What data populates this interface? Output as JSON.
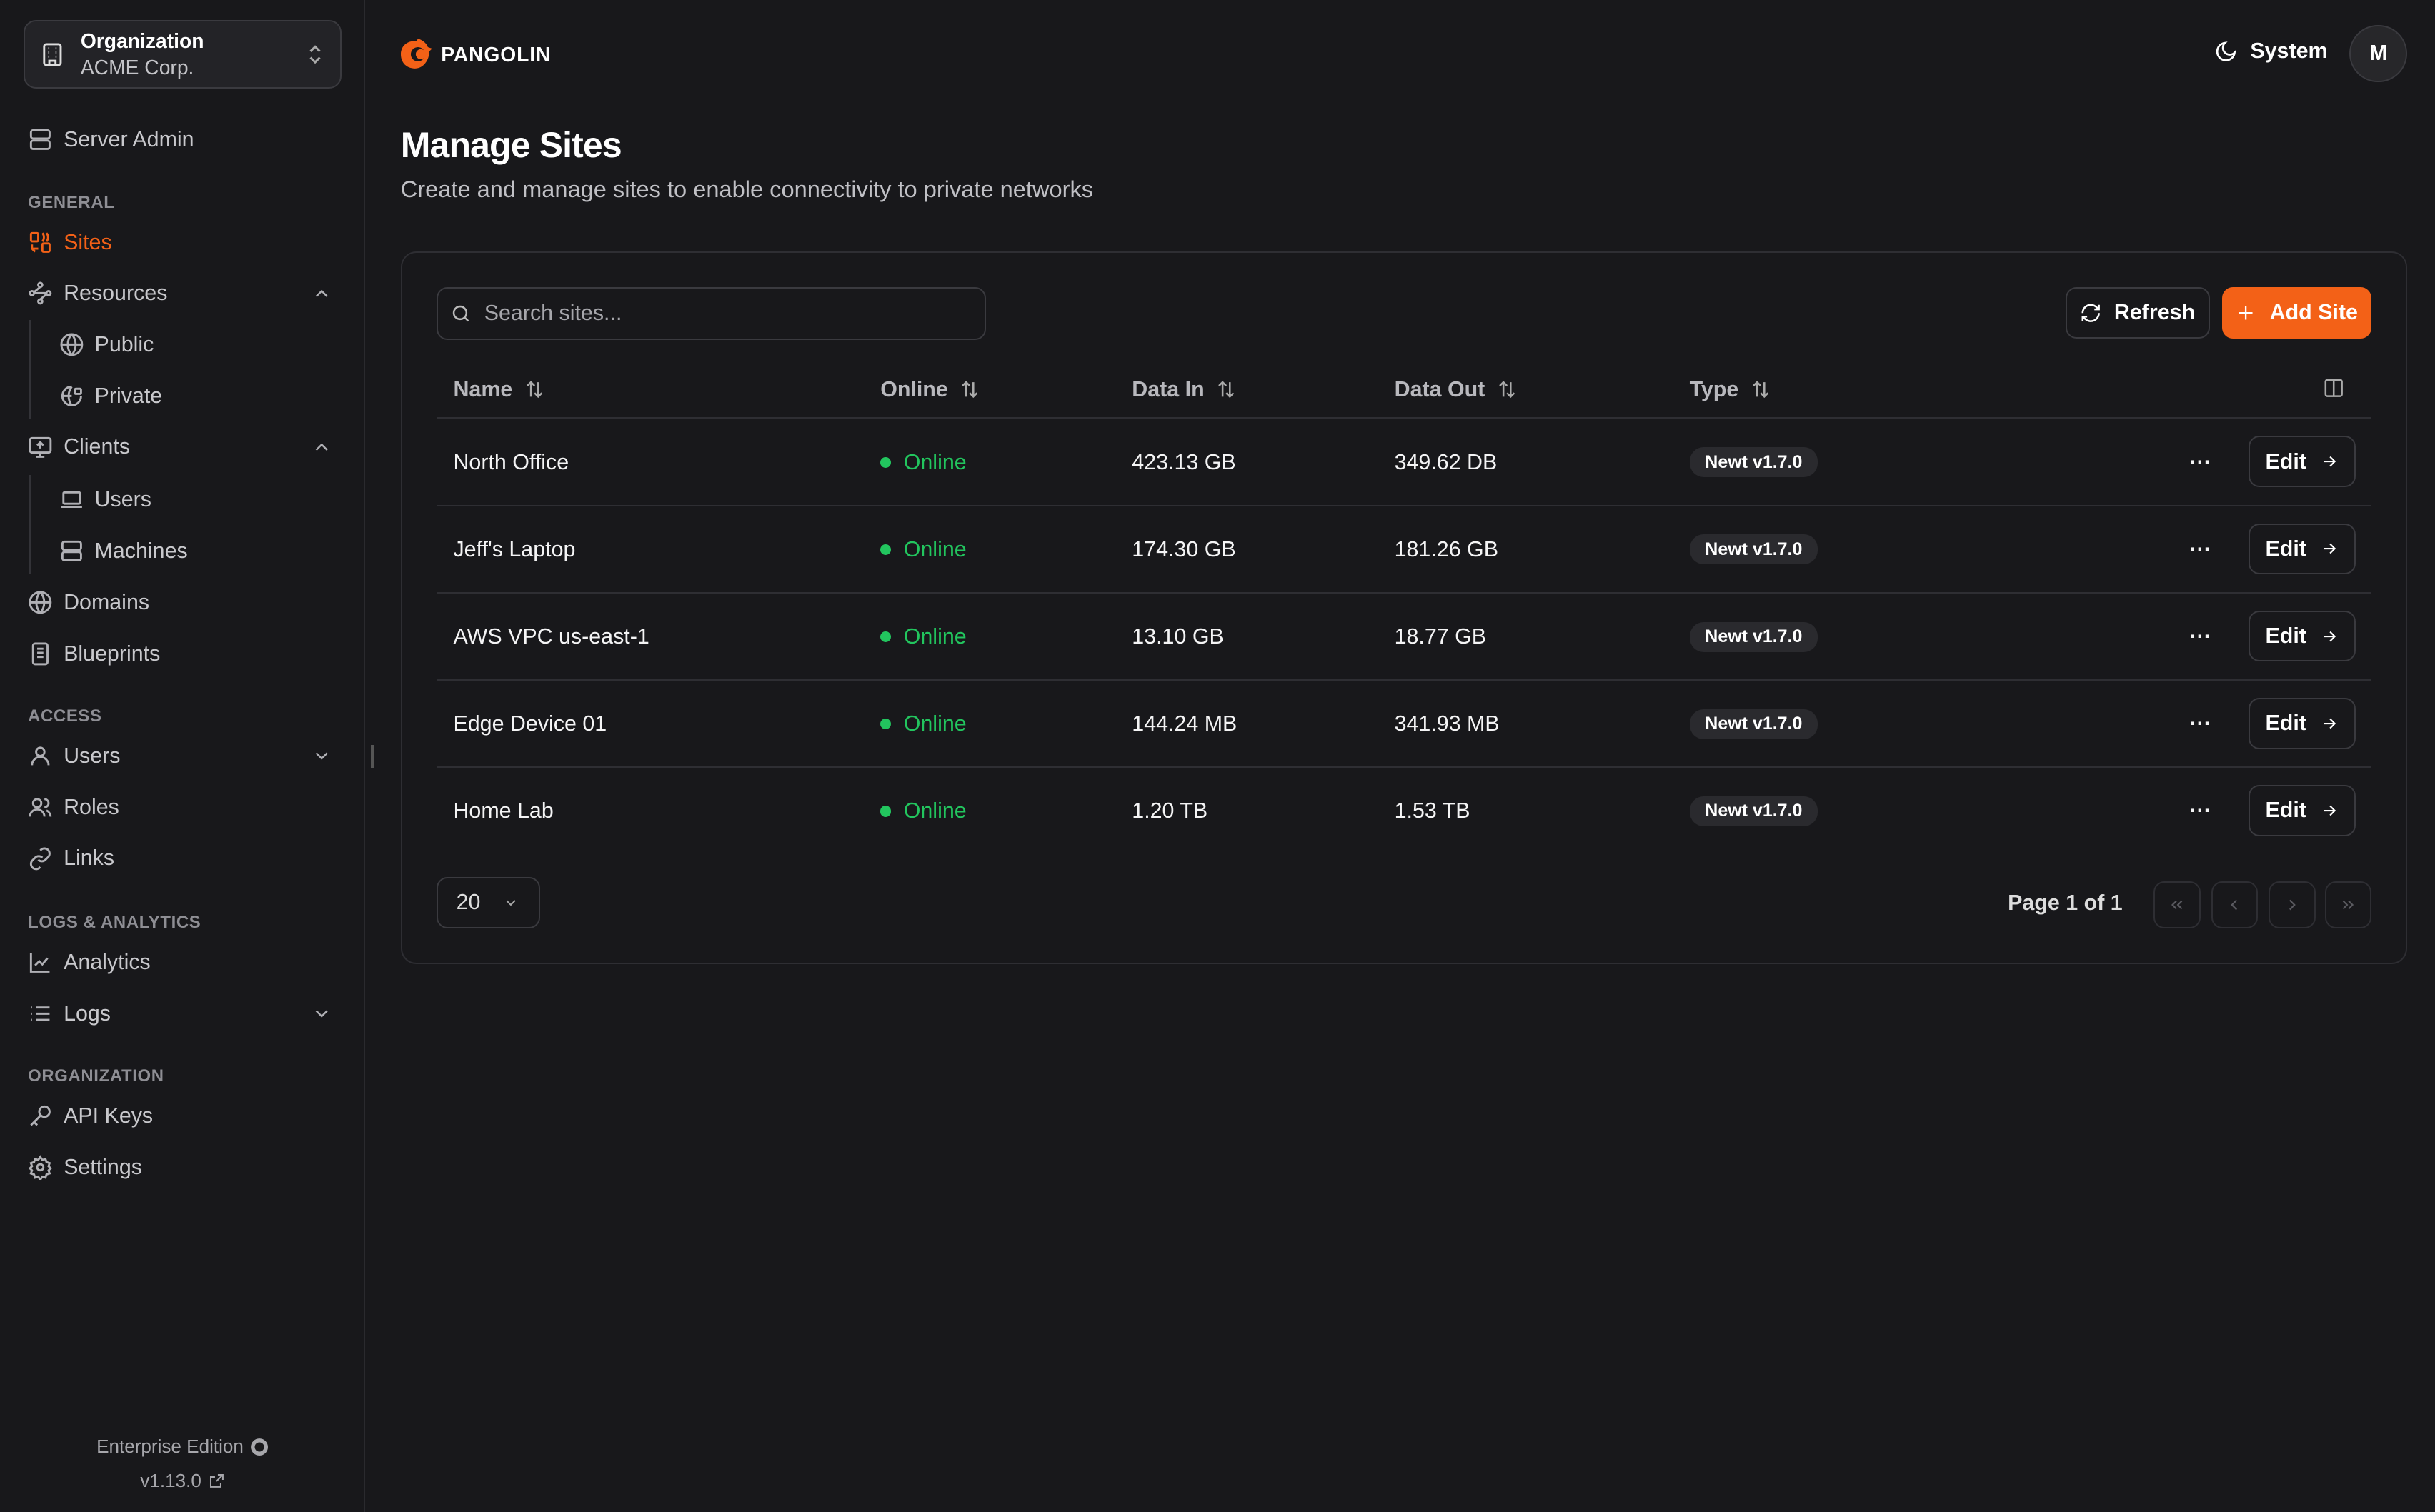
{
  "org": {
    "label": "Organization",
    "name": "ACME Corp."
  },
  "sidebar": {
    "server_admin": "Server Admin",
    "sections": [
      "GENERAL",
      "ACCESS",
      "LOGS & ANALYTICS",
      "ORGANIZATION"
    ],
    "items": {
      "sites": "Sites",
      "resources": "Resources",
      "public": "Public",
      "private": "Private",
      "clients": "Clients",
      "users_client": "Users",
      "machines": "Machines",
      "domains": "Domains",
      "blueprints": "Blueprints",
      "users": "Users",
      "roles": "Roles",
      "links": "Links",
      "analytics": "Analytics",
      "logs": "Logs",
      "api_keys": "API Keys",
      "settings": "Settings"
    },
    "footer": {
      "edition": "Enterprise Edition",
      "version": "v1.13.0"
    }
  },
  "header": {
    "brand": "PANGOLIN",
    "theme": "System",
    "avatar": "M",
    "accent": "#f36117"
  },
  "page": {
    "title": "Manage Sites",
    "subtitle": "Create and manage sites to enable connectivity to private networks"
  },
  "toolbar": {
    "search_placeholder": "Search sites...",
    "refresh": "Refresh",
    "add": "Add Site"
  },
  "table": {
    "columns": [
      "Name",
      "Online",
      "Data In",
      "Data Out",
      "Type"
    ],
    "rows": [
      {
        "name": "North Office",
        "online": "Online",
        "in": "423.13 GB",
        "out": "349.62 DB",
        "type": "Newt v1.7.0"
      },
      {
        "name": "Jeff's Laptop",
        "online": "Online",
        "in": "174.30 GB",
        "out": "181.26 GB",
        "type": "Newt v1.7.0"
      },
      {
        "name": "AWS VPC us-east-1",
        "online": "Online",
        "in": "13.10 GB",
        "out": "18.77 GB",
        "type": "Newt v1.7.0"
      },
      {
        "name": "Edge Device 01",
        "online": "Online",
        "in": "144.24 MB",
        "out": "341.93 MB",
        "type": "Newt v1.7.0"
      },
      {
        "name": "Home Lab",
        "online": "Online",
        "in": "1.20 TB",
        "out": "1.53 TB",
        "type": "Newt v1.7.0"
      }
    ],
    "edit": "Edit"
  },
  "pagination": {
    "page_size": "20",
    "page_text": "Page 1 of 1"
  }
}
